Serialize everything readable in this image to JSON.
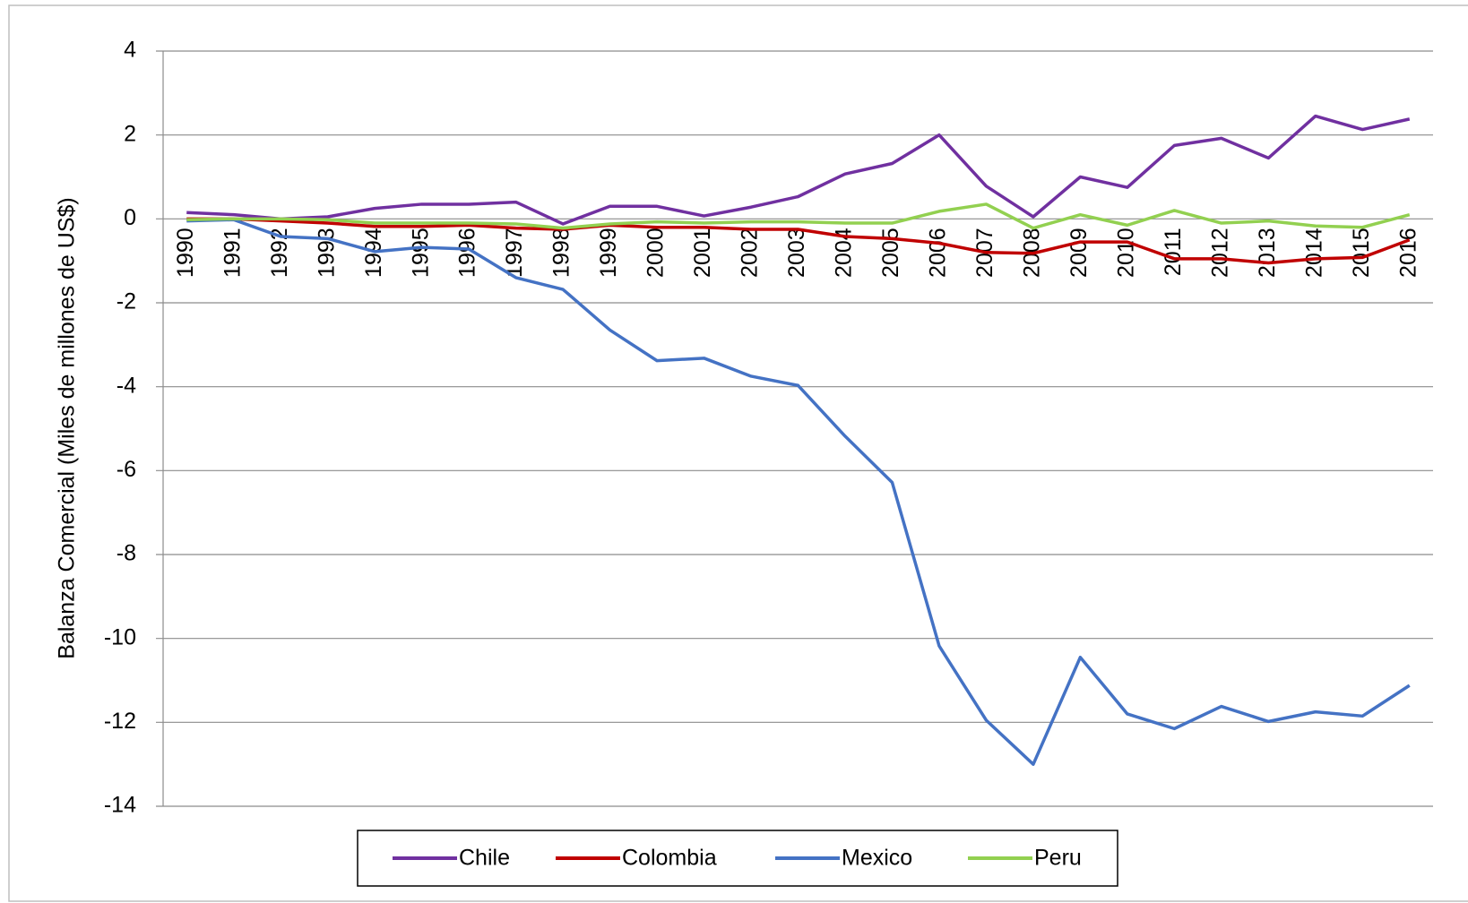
{
  "chart_data": {
    "type": "line",
    "y_label": "Balanza Comercial (Miles de millones de US$)",
    "categories": [
      "1990",
      "1991",
      "1992",
      "1993",
      "1994",
      "1995",
      "1996",
      "1997",
      "1998",
      "1999",
      "2000",
      "2001",
      "2002",
      "2003",
      "2004",
      "2005",
      "2006",
      "2007",
      "2008",
      "2009",
      "2010",
      "2011",
      "2012",
      "2013",
      "2014",
      "2015",
      "2016"
    ],
    "series": [
      {
        "name": "Chile",
        "color": "#7030a0",
        "values": [
          0.15,
          0.1,
          0.0,
          0.05,
          0.25,
          0.35,
          0.35,
          0.4,
          -0.12,
          0.3,
          0.3,
          0.07,
          0.28,
          0.53,
          1.07,
          1.32,
          2.0,
          0.78,
          0.05,
          1.0,
          0.75,
          1.75,
          1.92,
          1.45,
          2.45,
          2.13,
          2.38
        ]
      },
      {
        "name": "Colombia",
        "color": "#c00000",
        "values": [
          0.0,
          0.0,
          -0.05,
          -0.1,
          -0.18,
          -0.18,
          -0.15,
          -0.22,
          -0.25,
          -0.15,
          -0.2,
          -0.2,
          -0.25,
          -0.25,
          -0.42,
          -0.47,
          -0.58,
          -0.8,
          -0.82,
          -0.55,
          -0.55,
          -0.95,
          -0.95,
          -1.05,
          -0.95,
          -0.92,
          -0.5
        ]
      },
      {
        "name": "Mexico",
        "color": "#4472c4",
        "values": [
          -0.05,
          -0.02,
          -0.42,
          -0.47,
          -0.78,
          -0.68,
          -0.72,
          -1.4,
          -1.68,
          -2.65,
          -3.38,
          -3.32,
          -3.75,
          -3.97,
          -5.18,
          -6.28,
          -10.18,
          -11.95,
          -13.0,
          -10.45,
          -11.8,
          -12.15,
          -11.62,
          -11.98,
          -11.75,
          -11.85,
          -11.12
        ]
      },
      {
        "name": "Peru",
        "color": "#92d050",
        "values": [
          -0.02,
          0.0,
          0.0,
          -0.02,
          -0.1,
          -0.1,
          -0.1,
          -0.12,
          -0.22,
          -0.12,
          -0.07,
          -0.1,
          -0.07,
          -0.07,
          -0.1,
          -0.1,
          0.18,
          0.35,
          -0.22,
          0.1,
          -0.15,
          0.2,
          -0.1,
          -0.05,
          -0.17,
          -0.2,
          0.1
        ]
      }
    ],
    "ylim": [
      -14,
      4
    ],
    "yticks": [
      -14,
      -12,
      -10,
      -8,
      -6,
      -4,
      -2,
      0,
      2,
      4
    ],
    "grid": true,
    "legend": "bottom"
  }
}
